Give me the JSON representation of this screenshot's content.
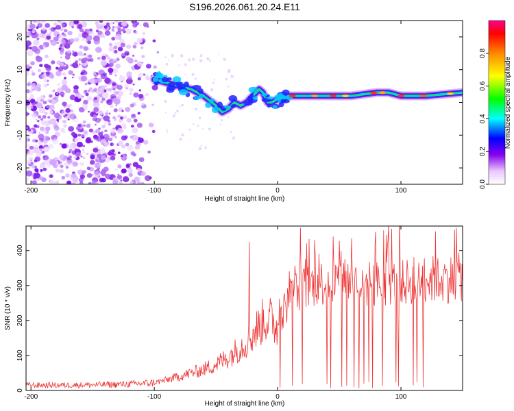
{
  "chart_data": [
    {
      "type": "heatmap",
      "title": "S196.2026.061.20.24.E11",
      "xlabel": "Height of straight line (km)",
      "ylabel": "Frequency (Hz)",
      "xlim": [
        -204,
        150
      ],
      "ylim": [
        -25,
        25
      ],
      "xticks": [
        -200,
        -100,
        0,
        100
      ],
      "yticks": [
        -20,
        -10,
        0,
        10,
        20
      ],
      "colorbar": {
        "label": "Normalized spectral amplitude",
        "range": [
          0,
          1
        ],
        "ticks": [
          "0.0",
          "0.2",
          "0.4",
          "0.6",
          "0.8"
        ],
        "tick_values": [
          0,
          0.2,
          0.4,
          0.6,
          0.8
        ]
      },
      "ridge": {
        "x": [
          -100,
          -90,
          -80,
          -70,
          -60,
          -50,
          -45,
          -40,
          -35,
          -30,
          -25,
          -20,
          -15,
          -12,
          -8,
          -5,
          0,
          10,
          20,
          40,
          60,
          80,
          90,
          100,
          120,
          150
        ],
        "y": [
          7,
          6,
          5,
          4,
          2,
          -1,
          -3,
          -2,
          0,
          -1,
          0,
          2,
          4,
          3,
          0,
          0,
          1,
          2,
          2,
          2,
          2,
          3,
          3,
          2,
          2,
          3
        ]
      },
      "noise_region_km": [
        -204,
        -95
      ]
    },
    {
      "type": "line",
      "title": "",
      "xlabel": "Height of straight line (km)",
      "ylabel": "SNR (10 * v/v)",
      "xlim": [
        -204,
        150
      ],
      "ylim": [
        0,
        470
      ],
      "xticks": [
        -200,
        -100,
        0,
        100
      ],
      "yticks": [
        0,
        100,
        200,
        300,
        400
      ],
      "color": "#ee3333",
      "series": [
        {
          "name": "SNR",
          "x": [
            -204,
            -180,
            -150,
            -120,
            -100,
            -90,
            -80,
            -70,
            -60,
            -50,
            -45,
            -40,
            -35,
            -30,
            -25,
            -20,
            -15,
            -10,
            -5,
            0,
            5,
            10,
            15,
            20,
            30,
            40,
            50,
            60,
            70,
            80,
            90,
            100,
            110,
            120,
            130,
            140,
            150
          ],
          "values": [
            15,
            15,
            16,
            18,
            22,
            30,
            40,
            50,
            60,
            75,
            85,
            95,
            110,
            125,
            140,
            160,
            185,
            205,
            200,
            180,
            230,
            260,
            280,
            290,
            305,
            310,
            315,
            310,
            300,
            305,
            310,
            305,
            315,
            320,
            315,
            320,
            325
          ]
        }
      ],
      "spikes": [
        {
          "x": -23,
          "value": 425
        },
        {
          "x": 30,
          "value": 430
        },
        {
          "x": 45,
          "value": 440
        },
        {
          "x": 60,
          "value": 435
        },
        {
          "x": 88,
          "value": 445
        },
        {
          "x": 128,
          "value": 455
        },
        {
          "x": 145,
          "value": 465
        }
      ],
      "dropouts_km": [
        2,
        12,
        20,
        40,
        43,
        52,
        56,
        62,
        66,
        70,
        74,
        77,
        85,
        96,
        98,
        110,
        113,
        118
      ]
    }
  ]
}
